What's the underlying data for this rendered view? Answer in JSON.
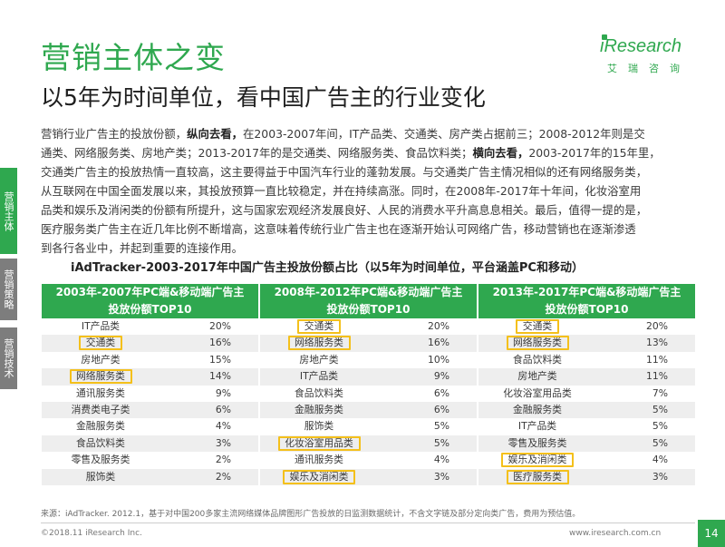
{
  "header": {
    "title": "营销主体之变",
    "subtitle": "以5年为时间单位，看中国广告主的行业变化",
    "logo_text": "iResearch",
    "logo_sub": "艾瑞咨询"
  },
  "sidebar": {
    "tabs": [
      {
        "label": "营销主体",
        "active": true
      },
      {
        "label": "营销策略",
        "active": false
      },
      {
        "label": "营销技术",
        "active": false
      }
    ]
  },
  "body_text": {
    "lines": [
      [
        "营销行业广告主的投放份额，",
        "纵向去看，",
        "在2003-2007年间，IT产品类、交通类、房产类占据前三；2008-2012年则是交"
      ],
      [
        "通类、网络服务类、房地产类；2013-2017年的是交通类、网络服务类、食品饮料类；",
        "横向去看，",
        "2003-2017年的15年里，"
      ],
      [
        "交通类广告主的投放热情一直较高，这主要得益于中国汽车行业的蓬勃发展。与交通类广告主情况相似的还有网络服务类，",
        "",
        ""
      ],
      [
        "从互联网在中国全面发展以来，其投放预算一直比较稳定，并在持续高涨。同时，在2008年-2017年十年间，化妆浴室用",
        "",
        ""
      ],
      [
        "品类和娱乐及消闲类的份额有所提升，这与国家宏观经济发展良好、人民的消费水平升高息息相关。最后，值得一提的是，",
        "",
        ""
      ],
      [
        "医疗服务类广告主在近几年比例不断增高，这意味着传统行业广告主也在逐渐开始认可网络广告，移动营销也在逐渐渗透",
        "",
        ""
      ],
      [
        "到各行各业中，并起到重要的连接作用。",
        "",
        ""
      ]
    ]
  },
  "chart_data": {
    "type": "table",
    "title": "iAdTracker-2003-2017年中国广告主投放份额占比（以5年为时间单位，平台涵盖PC和移动）",
    "periods": [
      {
        "header_line1": "2003年-2007年PC端&移动端广告主",
        "header_line2": "投放份额TOP10",
        "rows": [
          {
            "category": "IT产品类",
            "value": "20%",
            "highlight": false
          },
          {
            "category": "交通类",
            "value": "16%",
            "highlight": true
          },
          {
            "category": "房地产类",
            "value": "15%",
            "highlight": false
          },
          {
            "category": "网络服务类",
            "value": "14%",
            "highlight": true
          },
          {
            "category": "通讯服务类",
            "value": "9%",
            "highlight": false
          },
          {
            "category": "消费类电子类",
            "value": "6%",
            "highlight": false
          },
          {
            "category": "金融服务类",
            "value": "4%",
            "highlight": false
          },
          {
            "category": "食品饮料类",
            "value": "3%",
            "highlight": false
          },
          {
            "category": "零售及服务类",
            "value": "2%",
            "highlight": false
          },
          {
            "category": "服饰类",
            "value": "2%",
            "highlight": false
          }
        ]
      },
      {
        "header_line1": "2008年-2012年PC端&移动端广告主",
        "header_line2": "投放份额TOP10",
        "rows": [
          {
            "category": "交通类",
            "value": "20%",
            "highlight": true
          },
          {
            "category": "网络服务类",
            "value": "16%",
            "highlight": true
          },
          {
            "category": "房地产类",
            "value": "10%",
            "highlight": false
          },
          {
            "category": "IT产品类",
            "value": "9%",
            "highlight": false
          },
          {
            "category": "食品饮料类",
            "value": "6%",
            "highlight": false
          },
          {
            "category": "金融服务类",
            "value": "6%",
            "highlight": false
          },
          {
            "category": "服饰类",
            "value": "5%",
            "highlight": false
          },
          {
            "category": "化妆浴室用品类",
            "value": "5%",
            "highlight": true
          },
          {
            "category": "通讯服务类",
            "value": "4%",
            "highlight": false
          },
          {
            "category": "娱乐及消闲类",
            "value": "3%",
            "highlight": true
          }
        ]
      },
      {
        "header_line1": "2013年-2017年PC端&移动端广告主",
        "header_line2": "投放份额TOP10",
        "rows": [
          {
            "category": "交通类",
            "value": "20%",
            "highlight": true
          },
          {
            "category": "网络服务类",
            "value": "13%",
            "highlight": true
          },
          {
            "category": "食品饮料类",
            "value": "11%",
            "highlight": false
          },
          {
            "category": "房地产类",
            "value": "11%",
            "highlight": false
          },
          {
            "category": "化妆浴室用品类",
            "value": "7%",
            "highlight": false
          },
          {
            "category": "金融服务类",
            "value": "5%",
            "highlight": false
          },
          {
            "category": "IT产品类",
            "value": "5%",
            "highlight": false
          },
          {
            "category": "零售及服务类",
            "value": "5%",
            "highlight": false
          },
          {
            "category": "娱乐及消闲类",
            "value": "4%",
            "highlight": true
          },
          {
            "category": "医疗服务类",
            "value": "3%",
            "highlight": true
          }
        ]
      }
    ]
  },
  "footer": {
    "source": "来源：iAdTracker. 2012.1，基于对中国200多家主流网络媒体品牌图形广告投放的日监测数据统计，不含文字链及部分定向类广告，费用为预估值。",
    "copyright": "©2018.11  iResearch Inc.",
    "url": "www.iresearch.com.cn",
    "page": "14"
  },
  "colors": {
    "accent": "#2fa84f",
    "highlight_border": "#f4c01b",
    "row_alt": "#eeeeee",
    "sidetab_inactive": "#7d7d7d"
  }
}
